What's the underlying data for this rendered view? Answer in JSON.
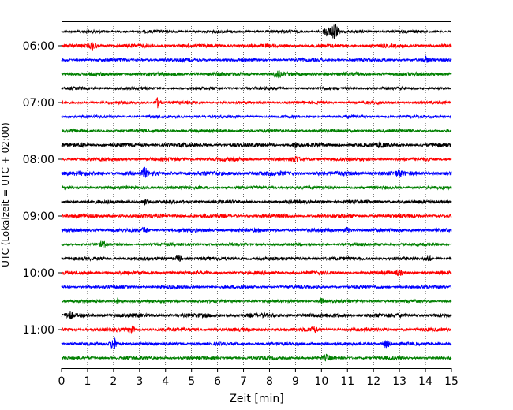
{
  "chart_data": {
    "type": "line",
    "xlabel": "Zeit  [min]",
    "ylabel": "UTC (Lokalzeit = UTC + 02:00)",
    "xlim": [
      0,
      15
    ],
    "x_ticks": [
      "0",
      "1",
      "2",
      "3",
      "4",
      "5",
      "6",
      "7",
      "8",
      "9",
      "10",
      "11",
      "12",
      "13",
      "14",
      "15"
    ],
    "y_ticks": [
      "06:00",
      "07:00",
      "08:00",
      "09:00",
      "10:00",
      "11:00"
    ],
    "grid": "vertical dotted at each minute",
    "trace_interval_min": 15,
    "start_utc": "05:45",
    "colors": [
      "#000000",
      "#ff0000",
      "#0000ff",
      "#008000"
    ],
    "traces": [
      {
        "utc": "05:45",
        "color": "#000000",
        "amplitude": 2.0,
        "events": [
          {
            "t": 10.2,
            "amp": 8
          },
          {
            "t": 10.5,
            "amp": 12
          }
        ]
      },
      {
        "utc": "06:00",
        "color": "#ff0000",
        "amplitude": 2.5,
        "events": [
          {
            "t": 1.2,
            "amp": 5
          }
        ]
      },
      {
        "utc": "06:15",
        "color": "#0000ff",
        "amplitude": 2.2,
        "events": [
          {
            "t": 14.0,
            "amp": 3
          }
        ]
      },
      {
        "utc": "06:30",
        "color": "#008000",
        "amplitude": 2.6,
        "events": [
          {
            "t": 8.3,
            "amp": 4
          }
        ]
      },
      {
        "utc": "06:45",
        "color": "#000000",
        "amplitude": 2.0,
        "events": []
      },
      {
        "utc": "07:00",
        "color": "#ff0000",
        "amplitude": 2.0,
        "events": [
          {
            "t": 3.7,
            "amp": 6
          }
        ]
      },
      {
        "utc": "07:15",
        "color": "#0000ff",
        "amplitude": 2.0,
        "events": []
      },
      {
        "utc": "07:30",
        "color": "#008000",
        "amplitude": 2.2,
        "events": []
      },
      {
        "utc": "07:45",
        "color": "#000000",
        "amplitude": 2.6,
        "events": [
          {
            "t": 0.8,
            "amp": 3
          },
          {
            "t": 9.0,
            "amp": 3
          },
          {
            "t": 12.3,
            "amp": 3
          }
        ]
      },
      {
        "utc": "08:00",
        "color": "#ff0000",
        "amplitude": 2.5,
        "events": [
          {
            "t": 9.0,
            "amp": 3
          }
        ]
      },
      {
        "utc": "08:15",
        "color": "#0000ff",
        "amplitude": 3.0,
        "events": [
          {
            "t": 3.2,
            "amp": 5
          },
          {
            "t": 13.0,
            "amp": 3
          }
        ]
      },
      {
        "utc": "08:30",
        "color": "#008000",
        "amplitude": 2.3,
        "events": []
      },
      {
        "utc": "08:45",
        "color": "#000000",
        "amplitude": 2.4,
        "events": [
          {
            "t": 3.2,
            "amp": 3
          }
        ]
      },
      {
        "utc": "09:00",
        "color": "#ff0000",
        "amplitude": 2.5,
        "events": []
      },
      {
        "utc": "09:15",
        "color": "#0000ff",
        "amplitude": 2.5,
        "events": [
          {
            "t": 3.2,
            "amp": 3
          },
          {
            "t": 11.0,
            "amp": 3
          }
        ]
      },
      {
        "utc": "09:30",
        "color": "#008000",
        "amplitude": 2.1,
        "events": [
          {
            "t": 1.6,
            "amp": 3
          }
        ]
      },
      {
        "utc": "09:45",
        "color": "#000000",
        "amplitude": 2.4,
        "events": [
          {
            "t": 4.5,
            "amp": 4
          },
          {
            "t": 14.1,
            "amp": 3
          }
        ]
      },
      {
        "utc": "10:00",
        "color": "#ff0000",
        "amplitude": 2.4,
        "events": [
          {
            "t": 13.0,
            "amp": 3
          }
        ]
      },
      {
        "utc": "10:15",
        "color": "#0000ff",
        "amplitude": 2.2,
        "events": []
      },
      {
        "utc": "10:30",
        "color": "#008000",
        "amplitude": 2.0,
        "events": [
          {
            "t": 2.2,
            "amp": 4
          },
          {
            "t": 10.0,
            "amp": 3
          }
        ]
      },
      {
        "utc": "10:45",
        "color": "#000000",
        "amplitude": 2.8,
        "events": [
          {
            "t": 0.3,
            "amp": 4
          }
        ]
      },
      {
        "utc": "11:00",
        "color": "#ff0000",
        "amplitude": 2.5,
        "events": [
          {
            "t": 2.7,
            "amp": 5
          },
          {
            "t": 9.7,
            "amp": 3
          }
        ]
      },
      {
        "utc": "11:15",
        "color": "#0000ff",
        "amplitude": 2.2,
        "events": [
          {
            "t": 2.0,
            "amp": 8
          },
          {
            "t": 12.5,
            "amp": 5
          }
        ]
      },
      {
        "utc": "11:30",
        "color": "#008000",
        "amplitude": 2.3,
        "events": [
          {
            "t": 10.2,
            "amp": 3
          }
        ]
      }
    ]
  }
}
